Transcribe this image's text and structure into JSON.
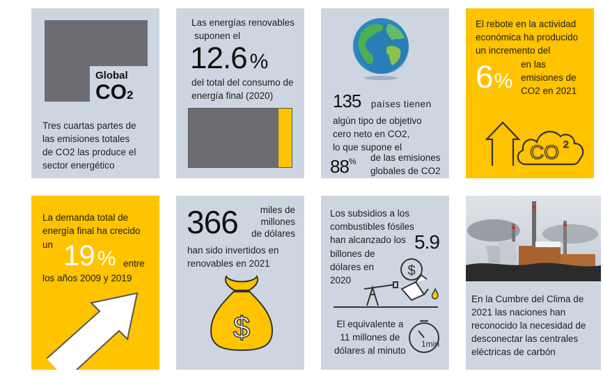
{
  "tiles": {
    "co2_share": {
      "logo_line1": "Global",
      "logo_line2": "CO",
      "logo_sub": "2",
      "text": [
        "Tres cuartas partes de",
        "las emisiones totales",
        "de CO2 las produce el",
        "sector energético"
      ]
    },
    "renewables_share": {
      "intro": [
        "Las energías renovables",
        "suponen el"
      ],
      "value": "12.6",
      "unit": "%",
      "detail": [
        "del total del consumo de",
        "energía final (2020)"
      ],
      "fraction": 0.126
    },
    "net_zero": {
      "count": "135",
      "count_suffix": "países tienen",
      "lines": [
        "algún tipo de objetivo",
        "cero neto en CO2,",
        "lo que supone el"
      ],
      "pct_value": "88",
      "pct_unit": "%",
      "pct_text": [
        "de las emisiones",
        "globales de CO2"
      ]
    },
    "rebound": {
      "lines": [
        "El rebote en la actividad",
        "económica ha producido",
        "un incremento del"
      ],
      "value": "6",
      "unit": "%",
      "after": [
        "en las",
        "emisiones de",
        "CO2 en 2021"
      ],
      "cloud_label": "CO",
      "cloud_sup": "2"
    },
    "demand": {
      "lines": [
        "La demanda total de",
        "energía final ha crecido"
      ],
      "prefix": "un",
      "value": "19",
      "unit": "%",
      "suffix": "entre",
      "tail": "los años 2009 y 2019"
    },
    "investment": {
      "value": "366",
      "side": [
        "miles de",
        "millones",
        "de dólares"
      ],
      "lines": [
        "han sido invertidos en",
        "renovables en 2021"
      ],
      "bag_symbol": "$"
    },
    "subsidies": {
      "lines": [
        "Los subsidios a los",
        "combustibles fósiles",
        "han alcanzado los"
      ],
      "value": "5.9",
      "lines2": [
        "billones de",
        "dólares en",
        "2020"
      ],
      "coin_symbol": "$",
      "equiv": [
        "El equivalente a",
        "11 millones de",
        "dólares al minuto"
      ],
      "timer_label": "1min"
    },
    "coal": {
      "lines": [
        "En la Cumbre del Clima de",
        "2021 las naciones han",
        "reconocido la necesidad de",
        "desconectar las centrales",
        "eléctricas de carbón"
      ]
    }
  },
  "colors": {
    "grey_tile": "#cdd6e0",
    "yellow_tile": "#ffc300",
    "dark_grey": "#6e6c73",
    "text": "#1e1e1e"
  }
}
